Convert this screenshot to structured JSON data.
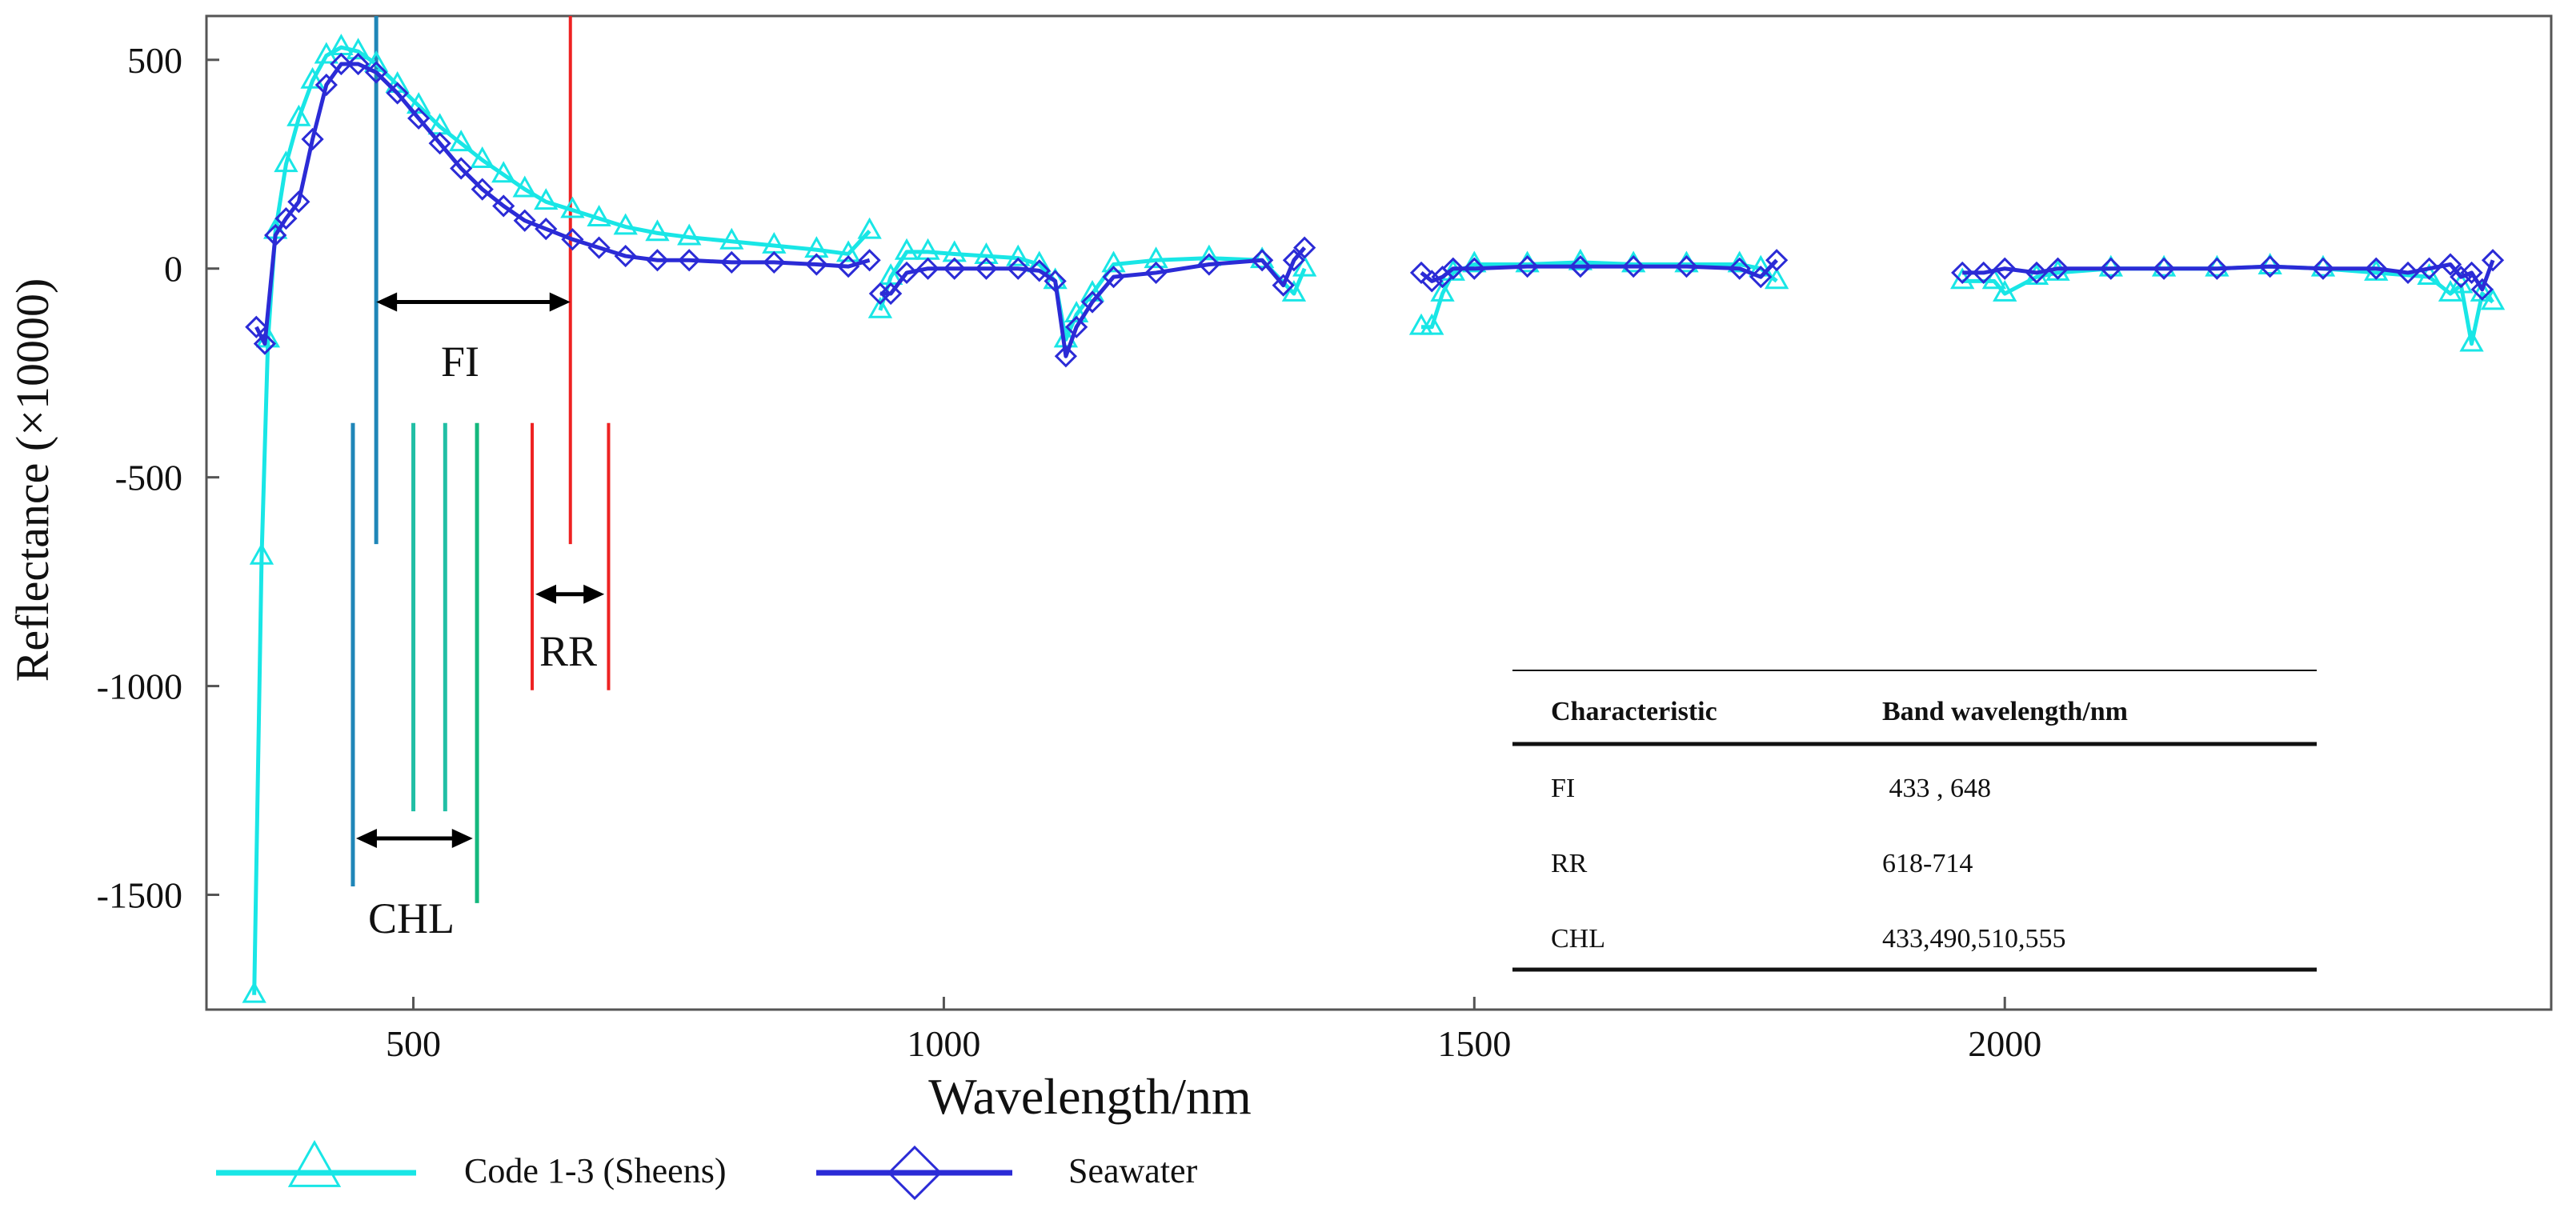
{
  "chart_data": {
    "type": "line",
    "xlabel": "Wavelength/nm",
    "ylabel": "Reflectance (×10000)",
    "xlim": [
      305,
      2515
    ],
    "ylim": [
      -1775,
      605
    ],
    "xticks": [
      500,
      1000,
      1500,
      2000
    ],
    "yticks": [
      500,
      0,
      -500,
      -1000,
      -1500
    ],
    "grid": false,
    "legend_position": "bottom-left",
    "series": [
      {
        "name": "Code 1-3 (Sheens)",
        "color": "#19e6e6",
        "marker": "triangle",
        "segments": [
          {
            "x": [
              350,
              357,
              363,
              370,
              380,
              392,
              405,
              418,
              432,
              448,
              465,
              485,
              505,
              525,
              545,
              565,
              585,
              605,
              625,
              650,
              675,
              700,
              730,
              760,
              800,
              840,
              880,
              910,
              930
            ],
            "y": [
              -1740,
              -690,
              -170,
              90,
              250,
              360,
              450,
              510,
              530,
              520,
              490,
              440,
              390,
              340,
              300,
              260,
              225,
              190,
              160,
              140,
              120,
              100,
              85,
              75,
              65,
              55,
              45,
              35,
              90
            ]
          },
          {
            "x": [
              940,
              950,
              965,
              985,
              1010,
              1040,
              1070,
              1090,
              1105,
              1115,
              1125,
              1140,
              1160,
              1200,
              1250,
              1300,
              1330,
              1340
            ],
            "y": [
              -100,
              -20,
              40,
              40,
              35,
              30,
              25,
              10,
              -30,
              -170,
              -110,
              -60,
              10,
              20,
              25,
              20,
              -60,
              0
            ]
          },
          {
            "x": [
              1450,
              1460,
              1470,
              1480,
              1500,
              1550,
              1600,
              1650,
              1700,
              1750,
              1770,
              1785
            ],
            "y": [
              -140,
              -140,
              -60,
              -10,
              10,
              10,
              15,
              10,
              10,
              10,
              0,
              -30
            ]
          },
          {
            "x": [
              1960,
              1990,
              2000,
              2030,
              2050,
              2100,
              2150,
              2200,
              2250,
              2300,
              2350,
              2400,
              2420,
              2430,
              2440,
              2450,
              2460
            ],
            "y": [
              -30,
              -30,
              -60,
              -20,
              -10,
              0,
              0,
              0,
              5,
              0,
              -10,
              -20,
              -60,
              -40,
              -180,
              -60,
              -80
            ]
          }
        ]
      },
      {
        "name": "Seawater",
        "color": "#2b2bd6",
        "marker": "diamond",
        "segments": [
          {
            "x": [
              352,
              360,
              370,
              380,
              392,
              405,
              418,
              432,
              448,
              465,
              485,
              505,
              525,
              545,
              565,
              585,
              605,
              625,
              650,
              675,
              700,
              730,
              760,
              800,
              840,
              880,
              910,
              930
            ],
            "y": [
              -140,
              -180,
              80,
              120,
              160,
              310,
              440,
              490,
              490,
              470,
              420,
              360,
              300,
              240,
              190,
              150,
              115,
              95,
              70,
              50,
              30,
              20,
              20,
              15,
              15,
              10,
              5,
              20
            ]
          },
          {
            "x": [
              940,
              950,
              965,
              985,
              1010,
              1040,
              1070,
              1090,
              1105,
              1115,
              1125,
              1140,
              1160,
              1200,
              1250,
              1300,
              1320,
              1330,
              1340
            ],
            "y": [
              -60,
              -60,
              -10,
              0,
              0,
              0,
              0,
              -5,
              -30,
              -210,
              -140,
              -80,
              -20,
              -10,
              10,
              20,
              -40,
              20,
              50
            ]
          },
          {
            "x": [
              1450,
              1460,
              1470,
              1480,
              1500,
              1550,
              1600,
              1650,
              1700,
              1750,
              1770,
              1785
            ],
            "y": [
              -10,
              -30,
              -20,
              0,
              0,
              5,
              5,
              5,
              5,
              0,
              -20,
              20
            ]
          },
          {
            "x": [
              1960,
              1980,
              2000,
              2030,
              2050,
              2100,
              2150,
              2200,
              2250,
              2300,
              2350,
              2380,
              2400,
              2420,
              2430,
              2440,
              2450,
              2460
            ],
            "y": [
              -10,
              -10,
              0,
              -10,
              0,
              0,
              0,
              0,
              5,
              0,
              0,
              -10,
              0,
              10,
              -20,
              -10,
              -50,
              20
            ]
          }
        ]
      }
    ],
    "annotations": {
      "fi": {
        "label": "FI",
        "lines_nm": [
          465,
          648
        ],
        "line_y_from": -660,
        "line_y_top": 605,
        "arrow_from_nm": 465,
        "arrow_to_nm": 648,
        "arrow_y": -80
      },
      "rr": {
        "label": "RR",
        "lines_nm": [
          612,
          684
        ],
        "line_y_from": -1010,
        "line_y_to": -370,
        "arrow_from_nm": 615,
        "arrow_to_nm": 680,
        "arrow_y": -780
      },
      "chl": {
        "label": "CHL",
        "lines_nm": [
          443,
          500,
          530,
          560
        ],
        "line_colors": [
          "#1f86b8",
          "#21bfa5",
          "#21bfa5",
          "#14b87d"
        ],
        "line_y_from": [
          -1480,
          -1300,
          -1300,
          -1520
        ],
        "line_y_to": -370,
        "arrow_from_nm": 446,
        "arrow_to_nm": 556,
        "arrow_y": -1365
      }
    },
    "table": {
      "headers": [
        "Characteristic",
        "Band wavelength/nm"
      ],
      "rows": [
        [
          "FI",
          " 433 , 648"
        ],
        [
          "RR",
          "618-714"
        ],
        [
          "CHL",
          "433,490,510,555"
        ]
      ]
    }
  }
}
